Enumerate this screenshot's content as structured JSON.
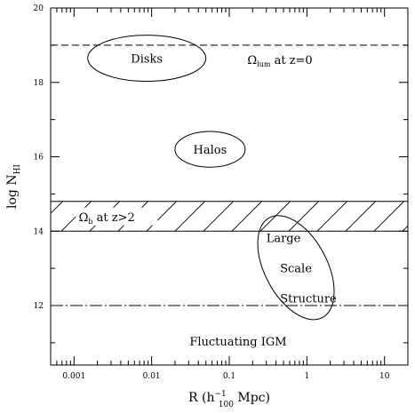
{
  "chart_data": {
    "type": "scatter",
    "title": "",
    "xlabel": {
      "main": "R (h",
      "sup": "−1",
      "sub": "100",
      "tail": " Mpc)"
    },
    "ylabel": {
      "main": "log N",
      "sub": "HI"
    },
    "x_scale": "log",
    "xlim": [
      0.0005,
      20
    ],
    "ylim": [
      10.4,
      20
    ],
    "x_ticks": [
      {
        "value": 0.001,
        "label": "0.001"
      },
      {
        "value": 0.01,
        "label": "0.01"
      },
      {
        "value": 0.1,
        "label": "0.1"
      },
      {
        "value": 1,
        "label": "1"
      },
      {
        "value": 10,
        "label": "10"
      }
    ],
    "y_ticks": [
      {
        "value": 12,
        "label": "12"
      },
      {
        "value": 14,
        "label": "14"
      },
      {
        "value": 16,
        "label": "16"
      },
      {
        "value": 18,
        "label": "18"
      },
      {
        "value": 20,
        "label": "20"
      }
    ],
    "grid": false,
    "horizontal_lines": [
      {
        "y": 19.0,
        "style": "dashed",
        "label": {
          "main": "Ω",
          "sub": "lum",
          "tail": " at z=0"
        }
      },
      {
        "y": 12.0,
        "style": "dash-dot",
        "label": null
      }
    ],
    "hatched_band": {
      "y_low": 14.0,
      "y_high": 14.8,
      "label": {
        "main": "Ω",
        "sub": "b",
        "tail": " at z>2"
      }
    },
    "regions": [
      {
        "name": "Disks",
        "lines": [
          "Disks"
        ],
        "center": [
          0.0062,
          18.65
        ],
        "x_span": [
          0.0015,
          0.05
        ],
        "y_half": 0.62,
        "rotation": 0
      },
      {
        "name": "Halos",
        "lines": [
          "Halos"
        ],
        "center": [
          0.056,
          16.2
        ],
        "x_span": [
          0.02,
          0.16
        ],
        "y_half": 0.48,
        "rotation": 0
      },
      {
        "name": "Large Scale Structure",
        "lines": [
          "Large",
          "Scale",
          "Structure"
        ],
        "center": [
          0.72,
          13.02
        ],
        "x_span": [
          0.18,
          2.9
        ],
        "y_half": 1.52,
        "rotation": -28
      }
    ],
    "annotations": [
      {
        "text": "Fluctuating IGM",
        "x": 0.13,
        "y": 11.05
      }
    ]
  }
}
